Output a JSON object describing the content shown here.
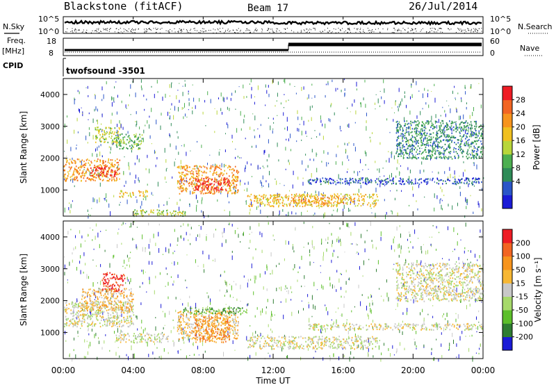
{
  "header": {
    "title": "Blackstone (fitACF)",
    "beam": "Beam 17",
    "date": "26/Jul/2014"
  },
  "noise_panel": {
    "left_label": "N.Sky",
    "right_label": "N.Search",
    "y_ticks": [
      "10^5",
      "10^0"
    ]
  },
  "freq_panel": {
    "left_label_1": "Freq.",
    "left_label_2": "[MHz]",
    "left_ticks": [
      "18",
      "8"
    ],
    "right_label": "Nave",
    "right_ticks": [
      "60",
      "0"
    ]
  },
  "cpid_panel": {
    "label": "CPID",
    "value": "twofsound  -3501"
  },
  "power_panel": {
    "ylabel": "Slant Range [km]",
    "colorbar_label": "Power [dB]",
    "colorbar_ticks": [
      "28",
      "24",
      "20",
      "16",
      "12",
      "8",
      "4"
    ],
    "colors": [
      "#1a1ad6",
      "#2a55c8",
      "#2e8b57",
      "#4caf50",
      "#b8d63a",
      "#f0c020",
      "#f7941d",
      "#f26522",
      "#ee1c24"
    ]
  },
  "velocity_panel": {
    "ylabel": "Slant Range [km]",
    "colorbar_label": "Velocity [m s⁻¹]",
    "colorbar_ticks": [
      "200",
      "100",
      "50",
      "15",
      "-15",
      "-50",
      "-100",
      "-200"
    ],
    "colors": [
      "#1a1ad6",
      "#2e7d32",
      "#5cbf2a",
      "#a6d96a",
      "#c8c8c8",
      "#f7b733",
      "#f7941d",
      "#f26522",
      "#ee1c24"
    ]
  },
  "x_axis": {
    "label": "Time UT",
    "ticks": [
      "00:00",
      "04:00",
      "08:00",
      "12:00",
      "16:00",
      "20:00",
      "00:00"
    ]
  },
  "chart_data": {
    "type": "heatmap",
    "x_range_hours": [
      0,
      24
    ],
    "y_range_km": [
      180,
      4500
    ],
    "y_ticks_km": [
      1000,
      2000,
      3000,
      4000
    ],
    "power_regions": [
      {
        "t0": 0.0,
        "t1": 3.2,
        "r0": 1300,
        "r1": 2000,
        "level": 6
      },
      {
        "t0": 1.5,
        "t1": 3.0,
        "r0": 1450,
        "r1": 1750,
        "level": 8
      },
      {
        "t0": 1.8,
        "t1": 3.2,
        "r0": 2500,
        "r1": 3000,
        "level": 4
      },
      {
        "t0": 3.0,
        "t1": 4.5,
        "r0": 2300,
        "r1": 2800,
        "level": 3
      },
      {
        "t0": 6.5,
        "t1": 10.0,
        "r0": 900,
        "r1": 1800,
        "level": 6
      },
      {
        "t0": 7.5,
        "t1": 9.5,
        "r0": 1000,
        "r1": 1400,
        "level": 8
      },
      {
        "t0": 10.5,
        "t1": 18.0,
        "r0": 500,
        "r1": 900,
        "level": 5
      },
      {
        "t0": 13.0,
        "t1": 16.0,
        "r0": 600,
        "r1": 800,
        "level": 6
      },
      {
        "t0": 4.0,
        "t1": 7.0,
        "r0": 200,
        "r1": 400,
        "level": 4
      },
      {
        "t0": 3.2,
        "t1": 4.8,
        "r0": 800,
        "r1": 1000,
        "level": 5
      },
      {
        "t0": 19.0,
        "t1": 24.0,
        "r0": 2000,
        "r1": 3200,
        "level": 2
      },
      {
        "t0": 14.0,
        "t1": 24.0,
        "r0": 1200,
        "r1": 1400,
        "level": 1
      }
    ],
    "velocity_regions": [
      {
        "t0": 0.0,
        "t1": 4.0,
        "r0": 1200,
        "r1": 2000,
        "level": 4
      },
      {
        "t0": 1.0,
        "t1": 4.0,
        "r0": 1700,
        "r1": 2400,
        "level": 5
      },
      {
        "t0": 2.2,
        "t1": 3.5,
        "r0": 2300,
        "r1": 2900,
        "level": 8
      },
      {
        "t0": 6.5,
        "t1": 10.0,
        "r0": 800,
        "r1": 1700,
        "level": 5
      },
      {
        "t0": 7.5,
        "t1": 9.5,
        "r0": 700,
        "r1": 1500,
        "level": 6
      },
      {
        "t0": 6.8,
        "t1": 10.5,
        "r0": 1600,
        "r1": 1800,
        "level": 2
      },
      {
        "t0": 10.5,
        "t1": 18.0,
        "r0": 500,
        "r1": 900,
        "level": 4
      },
      {
        "t0": 3.0,
        "t1": 6.0,
        "r0": 700,
        "r1": 1000,
        "level": 4
      },
      {
        "t0": 19.0,
        "t1": 24.0,
        "r0": 2000,
        "r1": 3200,
        "level": 4
      },
      {
        "t0": 14.0,
        "t1": 24.0,
        "r0": 1100,
        "r1": 1300,
        "level": 4
      }
    ]
  }
}
